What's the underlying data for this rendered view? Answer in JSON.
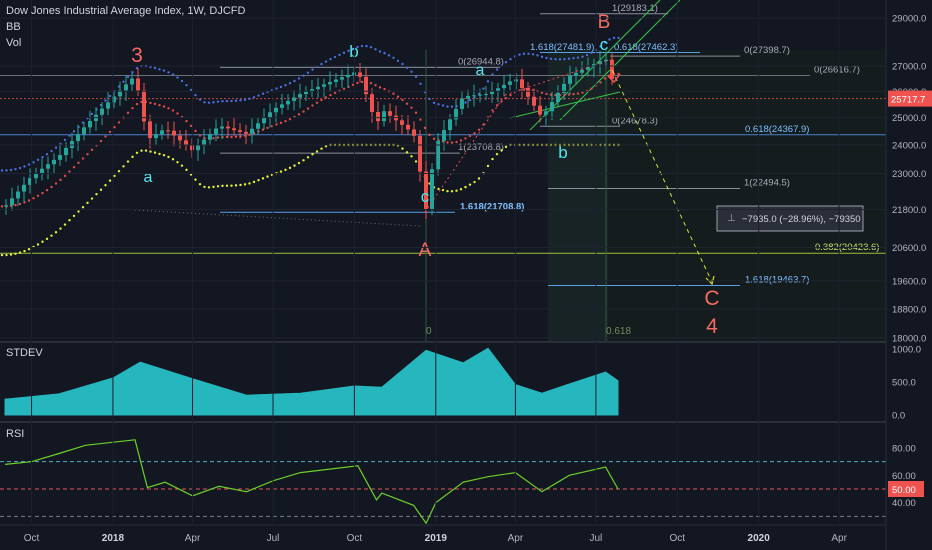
{
  "header": {
    "title": "Dow Jones Industrial Average Index, 1W, DJCFD",
    "indicator_bb": "BB",
    "indicator_vol": "Vol"
  },
  "panels": {
    "stdev_label": "STDEV",
    "rsi_label": "RSI"
  },
  "colors": {
    "background": "#131722",
    "up": "#26a69a",
    "down": "#ef5350",
    "wave_red": "#f66a63",
    "wave_cyan": "#4de8ee",
    "bb_upper": "#4b6ee0",
    "bb_mid": "#e04b4b",
    "bb_lower": "#e6f23a",
    "stdev_fill": "#26b6be",
    "rsi_line": "#6ccf2a",
    "channel": "#37c34a",
    "projection": "#d7e13a",
    "price_badge": "#ef5350"
  },
  "chart_data": [
    {
      "type": "candlestick",
      "panel": "price",
      "title": "Dow Jones Industrial Average Index, 1W, DJCFD",
      "ylim": [
        17300,
        30000
      ],
      "y_scale": "log",
      "price_axis_ticks": [
        "29000.0",
        "27000.0",
        "26000.0",
        "25000.0",
        "24000.0",
        "23000.0",
        "21800.0",
        "20600.0",
        "19600.0",
        "18800.0",
        "18000.0"
      ],
      "x_ticks": [
        "Oct",
        "2018",
        "Apr",
        "Jul",
        "Oct",
        "2019",
        "Apr",
        "Jul",
        "Oct",
        "2020",
        "Apr"
      ],
      "last_price": 25717.7,
      "last_price_label": "25717.7",
      "close_path": [
        {
          "t": "2017-09",
          "close": 21900
        },
        {
          "t": "2017-10",
          "close": 22900
        },
        {
          "t": "2017-11",
          "close": 23600
        },
        {
          "t": "2017-12",
          "close": 24700
        },
        {
          "t": "2018-01-26",
          "close": 26616
        },
        {
          "t": "2018-02-09",
          "close": 24190
        },
        {
          "t": "2018-03",
          "close": 24600
        },
        {
          "t": "2018-04",
          "close": 23800
        },
        {
          "t": "2018-05",
          "close": 24700
        },
        {
          "t": "2018-06",
          "close": 24400
        },
        {
          "t": "2018-07",
          "close": 25300
        },
        {
          "t": "2018-08",
          "close": 25900
        },
        {
          "t": "2018-10-05",
          "close": 26800
        },
        {
          "t": "2018-10-26",
          "close": 24700
        },
        {
          "t": "2018-11",
          "close": 25300
        },
        {
          "t": "2018-12-07",
          "close": 24400
        },
        {
          "t": "2018-12-21",
          "close": 21800
        },
        {
          "t": "2019-01",
          "close": 24000
        },
        {
          "t": "2019-02",
          "close": 25800
        },
        {
          "t": "2019-03",
          "close": 25900
        },
        {
          "t": "2019-04",
          "close": 26500
        },
        {
          "t": "2019-05",
          "close": 25000
        },
        {
          "t": "2019-06",
          "close": 26600
        },
        {
          "t": "2019-07-12",
          "close": 27300
        },
        {
          "t": "2019-07-26",
          "close": 25717.7
        }
      ],
      "fib_levels": [
        "1(29183.1)",
        "1.618(27481.9)",
        "0.618(27462.3)",
        "0(27398.7)",
        "0(26944.8)",
        "0(26616.7)",
        "0(24678.3)",
        "0.618(24367.9)",
        "1(23708.8)",
        "1(22494.5)",
        "1.618(21708.8)",
        "0.382(20423.6)",
        "1.618(19463.7)",
        "0",
        "0.618"
      ],
      "wave_labels": [
        "3",
        "a",
        "b",
        "c",
        "A",
        "a",
        "b",
        "c",
        "B",
        "C",
        "4"
      ],
      "measure_box": "−7935.0 (−28.96%), −79350"
    },
    {
      "type": "area",
      "panel": "STDEV",
      "ylim": [
        0,
        1000
      ],
      "axis_ticks": [
        "1000.0",
        "500.0",
        "0.0"
      ],
      "points": [
        {
          "t": "2017-09",
          "value": 240
        },
        {
          "t": "2017-11",
          "value": 320
        },
        {
          "t": "2018-01",
          "value": 560
        },
        {
          "t": "2018-02",
          "value": 800
        },
        {
          "t": "2018-04",
          "value": 550
        },
        {
          "t": "2018-06",
          "value": 300
        },
        {
          "t": "2018-08",
          "value": 330
        },
        {
          "t": "2018-10",
          "value": 440
        },
        {
          "t": "2018-11",
          "value": 420
        },
        {
          "t": "2018-12-21",
          "value": 980
        },
        {
          "t": "2019-02",
          "value": 790
        },
        {
          "t": "2019-03-01",
          "value": 1010
        },
        {
          "t": "2019-04",
          "value": 460
        },
        {
          "t": "2019-05",
          "value": 330
        },
        {
          "t": "2019-06",
          "value": 470
        },
        {
          "t": "2019-07-12",
          "value": 650
        },
        {
          "t": "2019-07-26",
          "value": 520
        }
      ]
    },
    {
      "type": "line",
      "panel": "RSI",
      "ylim": [
        20,
        100
      ],
      "axis_ticks": [
        "80.00",
        "60.00",
        "40.00"
      ],
      "bands": [
        70,
        50,
        30
      ],
      "last_value_label": "50.00",
      "points": [
        {
          "t": "2017-09",
          "value": 68
        },
        {
          "t": "2017-10",
          "value": 70
        },
        {
          "t": "2017-11",
          "value": 76
        },
        {
          "t": "2017-12",
          "value": 82
        },
        {
          "t": "2018-01-26",
          "value": 86
        },
        {
          "t": "2018-02-09",
          "value": 51
        },
        {
          "t": "2018-03",
          "value": 55
        },
        {
          "t": "2018-04",
          "value": 45
        },
        {
          "t": "2018-05",
          "value": 52
        },
        {
          "t": "2018-06",
          "value": 48
        },
        {
          "t": "2018-07",
          "value": 56
        },
        {
          "t": "2018-08",
          "value": 62
        },
        {
          "t": "2018-10-05",
          "value": 67
        },
        {
          "t": "2018-10-26",
          "value": 42
        },
        {
          "t": "2018-11",
          "value": 47
        },
        {
          "t": "2018-12-07",
          "value": 38
        },
        {
          "t": "2018-12-21",
          "value": 25
        },
        {
          "t": "2019-01",
          "value": 40
        },
        {
          "t": "2019-02",
          "value": 55
        },
        {
          "t": "2019-03",
          "value": 59
        },
        {
          "t": "2019-04",
          "value": 62
        },
        {
          "t": "2019-05",
          "value": 48
        },
        {
          "t": "2019-06",
          "value": 60
        },
        {
          "t": "2019-07-12",
          "value": 66
        },
        {
          "t": "2019-07-26",
          "value": 50
        }
      ]
    }
  ]
}
